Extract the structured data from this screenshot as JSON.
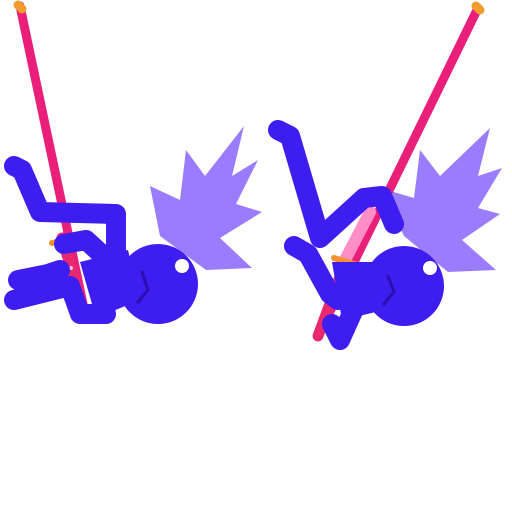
{
  "sprite_sheet": {
    "frames": [
      {
        "name": "stickman-ninja-frame-1",
        "pose": "hanging-on-katana"
      },
      {
        "name": "stickman-ninja-frame-2",
        "pose": "swinging-katana"
      }
    ]
  },
  "colors": {
    "background": "#ffffff",
    "body": "#3d1df0",
    "hair": "#9b7cff",
    "blade": "#ea1f7a",
    "blade_highlight": "#ff7fbd",
    "guard": "#f2912e",
    "tip": "#f39c2e",
    "handle": "#e8286f",
    "eye": "#ffffff"
  },
  "icons": [
    "stickman-ninja",
    "katana-sword"
  ]
}
